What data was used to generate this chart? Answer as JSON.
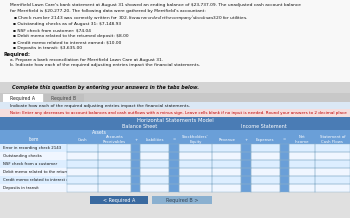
{
  "title_line1": "Merrifield Lawn Care's bank statement at August 31 showed an ending balance of $23,737.09. The unadjusted cash account balance",
  "title_line2": "for Merrifield is $20,277.20. The following data were gathered by Merrifield's accountant:",
  "bullets": [
    "Check number 2143 was correctly written for $302. It was recorded in the company's books as $320 for utilities.",
    "Outstanding checks as of August 31: $7,148.93",
    "NSF check from customer: $74.04",
    "Debit memo related to the returned deposit: $8.00",
    "Credit memo related to interest earned: $10.00",
    "Deposits in transit: $3,635.00"
  ],
  "required_label": "Required:",
  "req_a": "a. Prepare a bank reconciliation for Merrifield Lawn Care at August 31.",
  "req_b": "b. Indicate how each of the required adjusting entries impact the financial statements.",
  "tab_instruction": "Complete this question by entering your answers in the tabs below.",
  "tab1": "Required A",
  "tab2": "Required B",
  "instruction2": "Indicate how each of the required adjusting entries impact the financial statements.",
  "note": "Note: Enter any decreases to account balances and cash outflows with a minus sign. Leave cells blank if no input is needed. Round your answers to 2 decimal places.",
  "table_title": "Horizontal Statements Model",
  "row_labels": [
    "Error in recording check 2143",
    "Outstanding checks",
    "NSF check from a customer",
    "Debit memo related to the returned deposit",
    "Credit memo related to interest earned",
    "Deposits in transit"
  ],
  "col_names": [
    "Cash",
    "Accounts\nReceivables",
    "+",
    "Liabilities",
    "=",
    "Stockholders'\nEquity",
    "Revenue",
    "+",
    "Expenses",
    "=",
    "Net\nIncome",
    "Statement of\nCash Flows"
  ],
  "bg_page": "#e0e0e0",
  "bg_white": "#f8f8f8",
  "bg_blue_dark": "#4a7cb5",
  "bg_blue_mid": "#6a9fd8",
  "bg_blue_light": "#c8ddf0",
  "bg_row_alt": "#ddeeff",
  "bg_row_white": "#f0f6ff",
  "bg_gray_inst": "#d4d4d4",
  "bg_instr_blue": "#dbe8f5",
  "bg_note_pink": "#f5dede",
  "text_red": "#c00000",
  "btn1_color": "#3a6aa0",
  "btn2_color": "#8ab0d0"
}
